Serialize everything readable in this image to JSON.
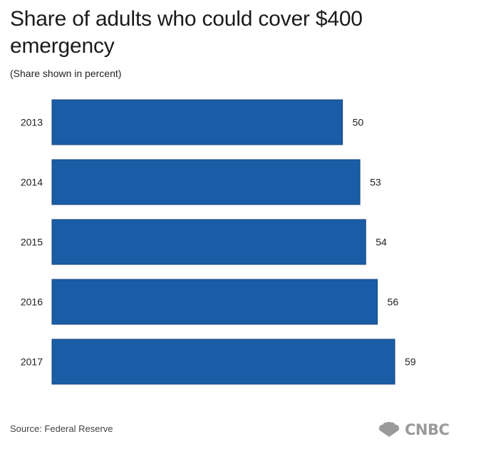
{
  "title": "Share of adults who could cover $400 emergency",
  "subtitle": "(Share shown in percent)",
  "source": "Source: Federal Reserve",
  "brand": "CNBC",
  "colors": {
    "bar": "#1a5da6",
    "bar_border": "#14467d",
    "label_text": "#222222"
  },
  "chart_data": {
    "type": "bar",
    "orientation": "horizontal",
    "categories": [
      "2013",
      "2014",
      "2015",
      "2016",
      "2017"
    ],
    "values": [
      50,
      53,
      54,
      56,
      59
    ],
    "title": "Share of adults who could cover $400 emergency",
    "subtitle": "(Share shown in percent)",
    "xlabel": "",
    "ylabel": "",
    "xlim": [
      0,
      59
    ],
    "grid": false,
    "legend": "none"
  }
}
